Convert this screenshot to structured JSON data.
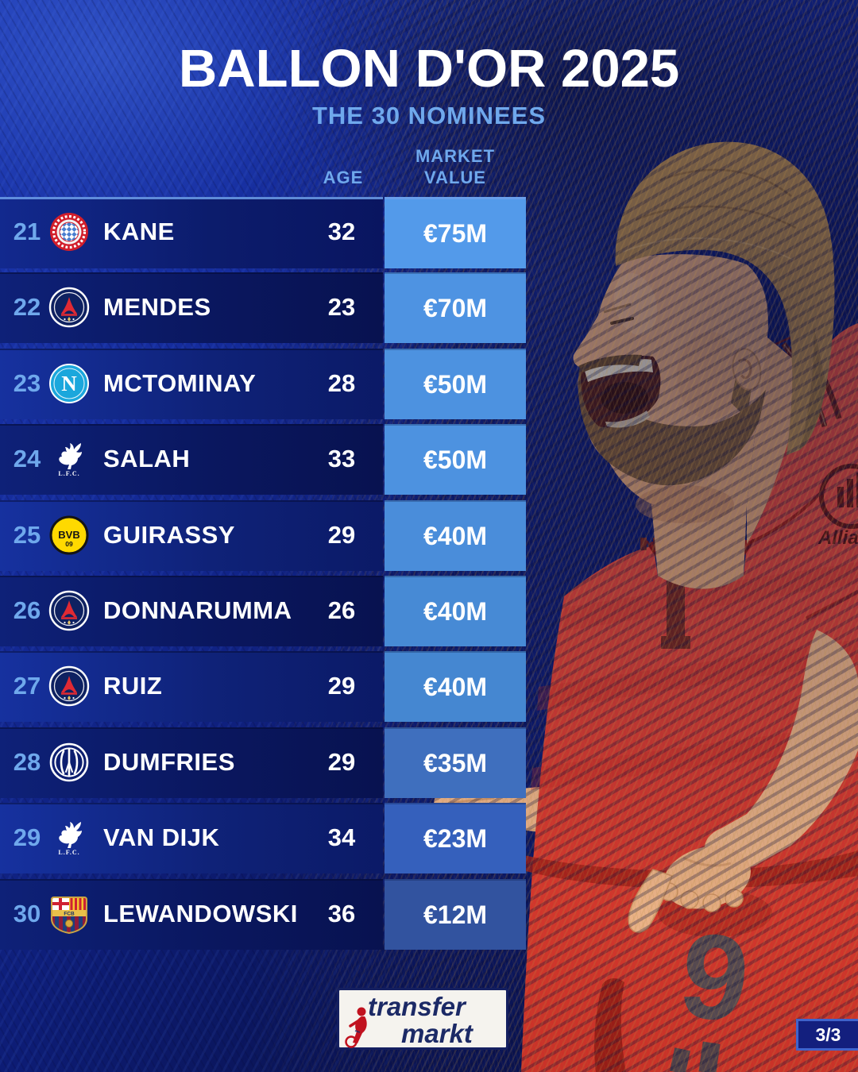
{
  "page": {
    "title": "BALLON D'OR 2025",
    "subtitle": "THE 30 NOMINEES"
  },
  "table": {
    "age_header": "AGE",
    "market_value_header_line1": "MARKET",
    "market_value_header_line2": "VALUE",
    "rows": [
      {
        "rank": "21",
        "club": "bayern",
        "player": "KANE",
        "age": "32",
        "value": "€75M",
        "value_color": "#539AEA"
      },
      {
        "rank": "22",
        "club": "psg",
        "player": "MENDES",
        "age": "23",
        "value": "€70M",
        "value_color": "#4E93E2"
      },
      {
        "rank": "23",
        "club": "napoli",
        "player": "MCTOMINAY",
        "age": "28",
        "value": "€50M",
        "value_color": "#4D92E0"
      },
      {
        "rank": "24",
        "club": "liverpool",
        "player": "SALAH",
        "age": "33",
        "value": "€50M",
        "value_color": "#4D92E0"
      },
      {
        "rank": "25",
        "club": "bvb",
        "player": "GUIRASSY",
        "age": "29",
        "value": "€40M",
        "value_color": "#4A8DDA"
      },
      {
        "rank": "26",
        "club": "psg",
        "player": "DONNARUMMA",
        "age": "26",
        "value": "€40M",
        "value_color": "#478AD5"
      },
      {
        "rank": "27",
        "club": "psg",
        "player": "RUIZ",
        "age": "29",
        "value": "€40M",
        "value_color": "#4587D1"
      },
      {
        "rank": "28",
        "club": "inter",
        "player": "DUMFRIES",
        "age": "29",
        "value": "€35M",
        "value_color": "#3F6FBE"
      },
      {
        "rank": "29",
        "club": "liverpool",
        "player": "VAN DIJK",
        "age": "34",
        "value": "€23M",
        "value_color": "#3560BC"
      },
      {
        "rank": "30",
        "club": "barcelona",
        "player": "LEWANDOWSKI",
        "age": "36",
        "value": "€12M",
        "value_color": "#32539F"
      }
    ]
  },
  "footer": {
    "brand_top": "transfer",
    "brand_bottom": "markt",
    "page_indicator": "3/3"
  },
  "colors": {
    "accent_text": "#6FA8EC",
    "title_text": "#FFFFFF",
    "jersey_red": "#E0443A",
    "badge_bg": "#131F7E",
    "badge_border": "#3F63CC"
  }
}
